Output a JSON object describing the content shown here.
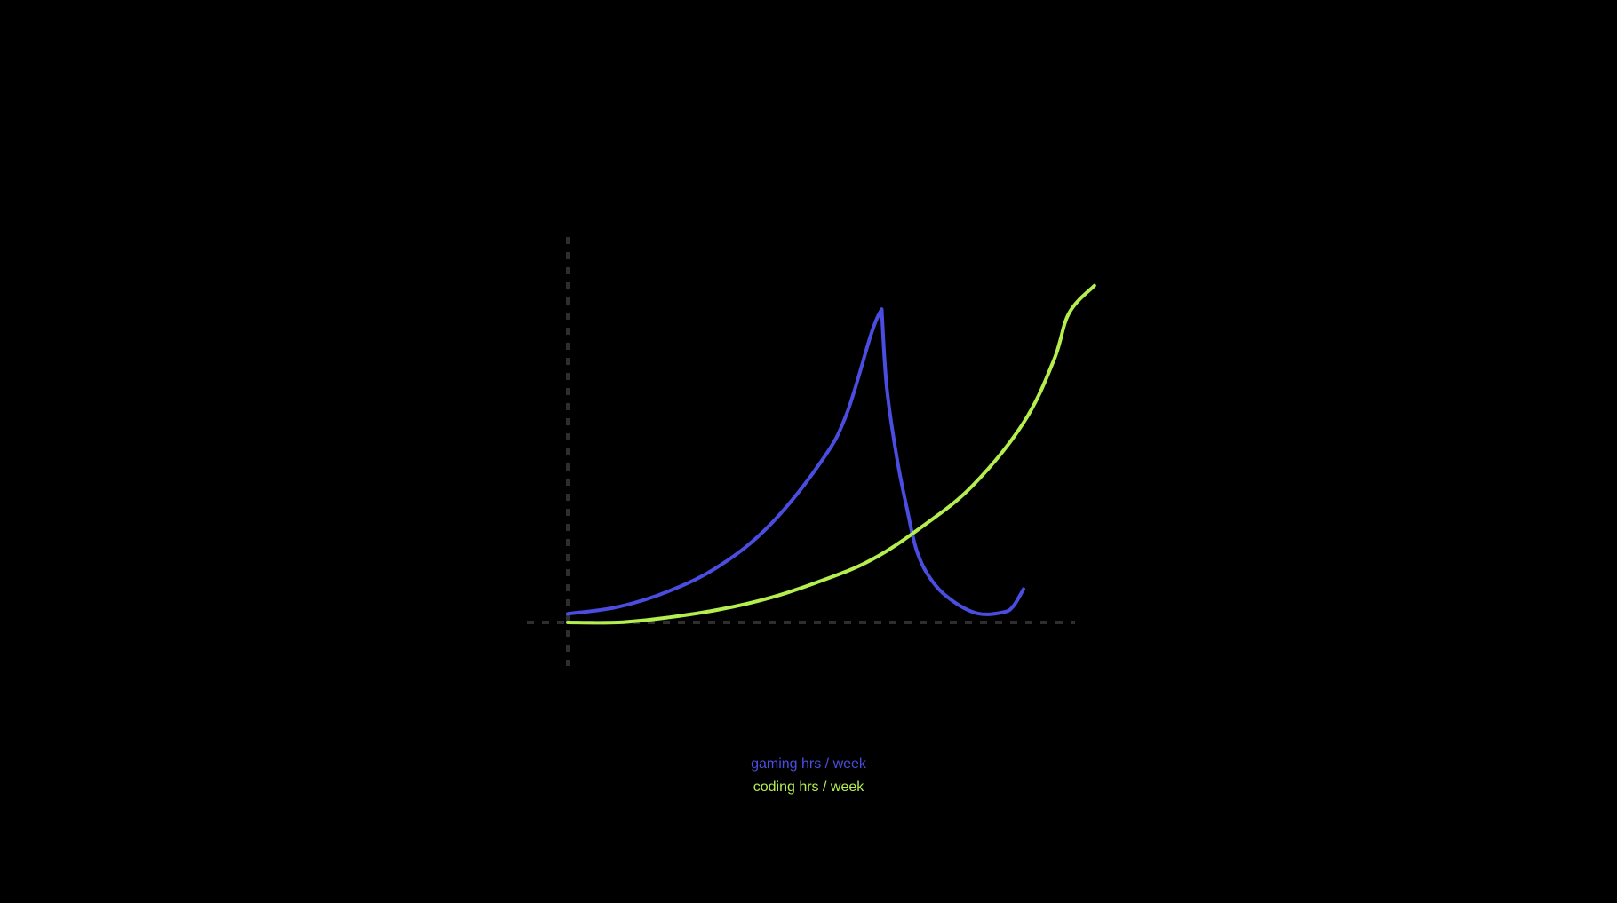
{
  "chart_data": {
    "type": "line",
    "title": "",
    "xlabel": "",
    "ylabel": "",
    "xlim": [
      0,
      100
    ],
    "ylim": [
      -6,
      96
    ],
    "grid": false,
    "axes_style": "dashed",
    "legend_placement": "bottom-center",
    "series": [
      {
        "name": "gaming hrs / week",
        "color": "#4b4de0",
        "points": [
          [
            0,
            2.2
          ],
          [
            10,
            4.0
          ],
          [
            20,
            8.0
          ],
          [
            30,
            14.5
          ],
          [
            40,
            25.0
          ],
          [
            50,
            41.0
          ],
          [
            55,
            53.0
          ],
          [
            60,
            74.0
          ],
          [
            62,
            80.0
          ],
          [
            63,
            60.0
          ],
          [
            65,
            42.0
          ],
          [
            67,
            29.0
          ],
          [
            69,
            18.0
          ],
          [
            72,
            10.5
          ],
          [
            76,
            5.5
          ],
          [
            81,
            2.3
          ],
          [
            86,
            2.6
          ],
          [
            88,
            4.2
          ],
          [
            90,
            8.5
          ]
        ]
      },
      {
        "name": "coding hrs / week",
        "color": "#b5ee4f",
        "points": [
          [
            0,
            0.0
          ],
          [
            10,
            0.0
          ],
          [
            20,
            1.3
          ],
          [
            30,
            3.3
          ],
          [
            40,
            6.3
          ],
          [
            50,
            10.6
          ],
          [
            60,
            16.0
          ],
          [
            70,
            24.5
          ],
          [
            80,
            35.0
          ],
          [
            90,
            51.0
          ],
          [
            96,
            67.0
          ],
          [
            99,
            79.0
          ],
          [
            104,
            86.0
          ]
        ]
      }
    ]
  },
  "legend": [
    {
      "label": "gaming hrs / week",
      "color": "#4b4de0"
    },
    {
      "label": "coding hrs / week",
      "color": "#b5ee4f"
    }
  ],
  "axis_color": "#2e2e2e"
}
